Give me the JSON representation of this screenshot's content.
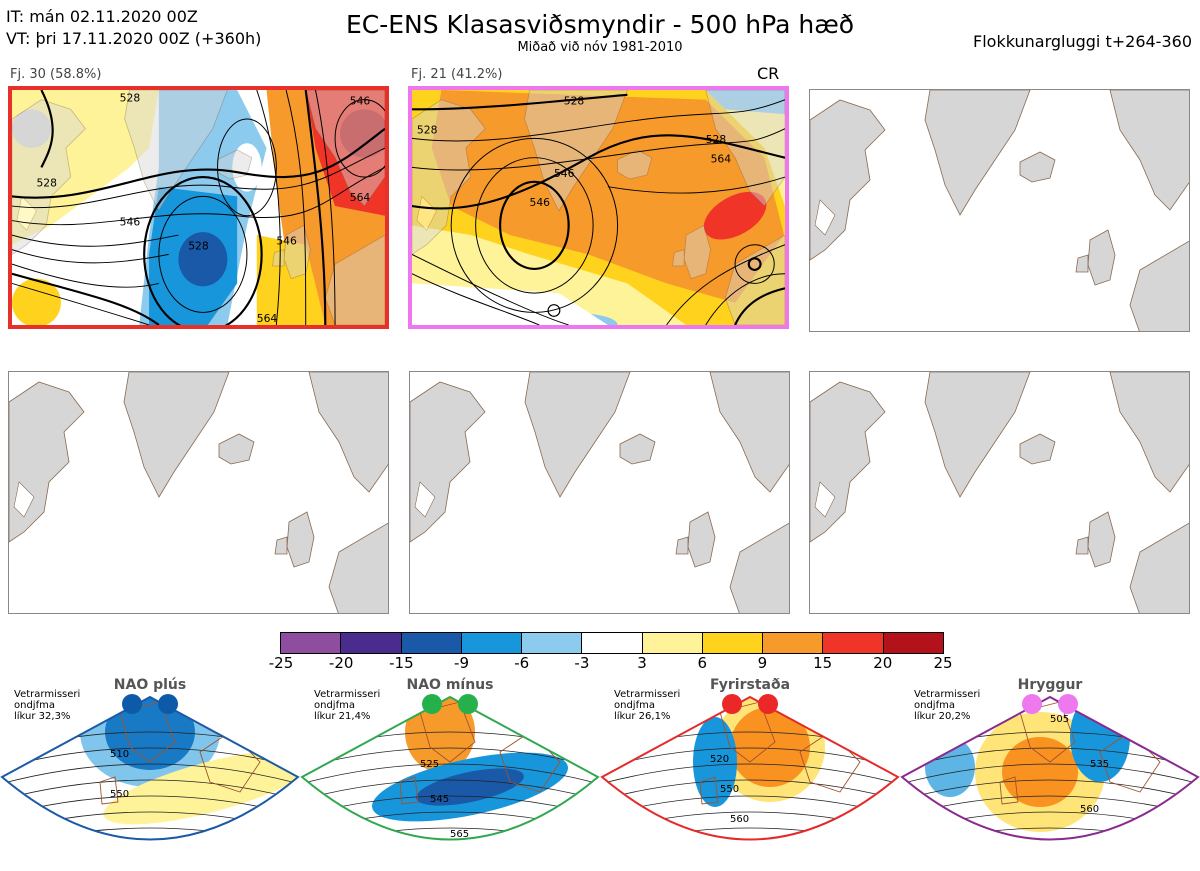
{
  "header": {
    "line1": "IT: mán 02.11.2020 00Z",
    "line2": "VT: þri 17.11.2020 00Z  (+360h)",
    "title": "EC-ENS Klasasviðsmyndir - 500 hPa hæð",
    "subtitle": "Miðað við nóv 1981-2010",
    "window": "Flokkunargluggi t+264-360"
  },
  "panels": [
    {
      "label": "Fj. 30 (58.8%)",
      "tag": "",
      "border": "#e8302a"
    },
    {
      "label": "Fj. 21 (41.2%)",
      "tag": "CR",
      "border": "#ee77ee"
    }
  ],
  "contour_labels_p1": [
    "528",
    "546",
    "546",
    "528",
    "546",
    "528",
    "564",
    "564"
  ],
  "contour_labels_p2": [
    "528",
    "528",
    "546",
    "528",
    "564",
    "546"
  ],
  "colorbar": {
    "colors": [
      "#8e4d9e",
      "#4a2b8e",
      "#1a58a8",
      "#1896dc",
      "#8ccbee",
      "#ffffff",
      "#fff39a",
      "#ffd21e",
      "#f79a2c",
      "#f03427",
      "#b3121a"
    ],
    "ticks": [
      "-25",
      "-20",
      "-15",
      "-9",
      "-6",
      "-3",
      "3",
      "6",
      "9",
      "15",
      "20",
      "25"
    ]
  },
  "regimes": [
    {
      "name": "NAO plús",
      "note1": "Vetrarmisseri",
      "note2": "ondjfma",
      "note3": "líkur 32,3%",
      "color": "#1c5aa6",
      "dot": "#0d5aa8",
      "labels": [
        "510",
        "550"
      ]
    },
    {
      "name": "NAO mínus",
      "note1": "Vetrarmisseri",
      "note2": "ondjfma",
      "note3": "líkur 21,4%",
      "color": "#2fa84f",
      "dot": "#25b04b",
      "labels": [
        "525",
        "545",
        "565"
      ]
    },
    {
      "name": "Fyrirstaða",
      "note1": "Vetrarmisseri",
      "note2": "ondjfma",
      "note3": "líkur 26,1%",
      "color": "#e42a2a",
      "dot": "#ea2828",
      "labels": [
        "520",
        "550",
        "560"
      ]
    },
    {
      "name": "Hryggur",
      "note1": "Vetrarmisseri",
      "note2": "ondjfma",
      "note3": "líkur 20,2%",
      "color": "#8a2a8e",
      "dot": "#ee78ee",
      "labels": [
        "505",
        "535",
        "560"
      ]
    }
  ]
}
